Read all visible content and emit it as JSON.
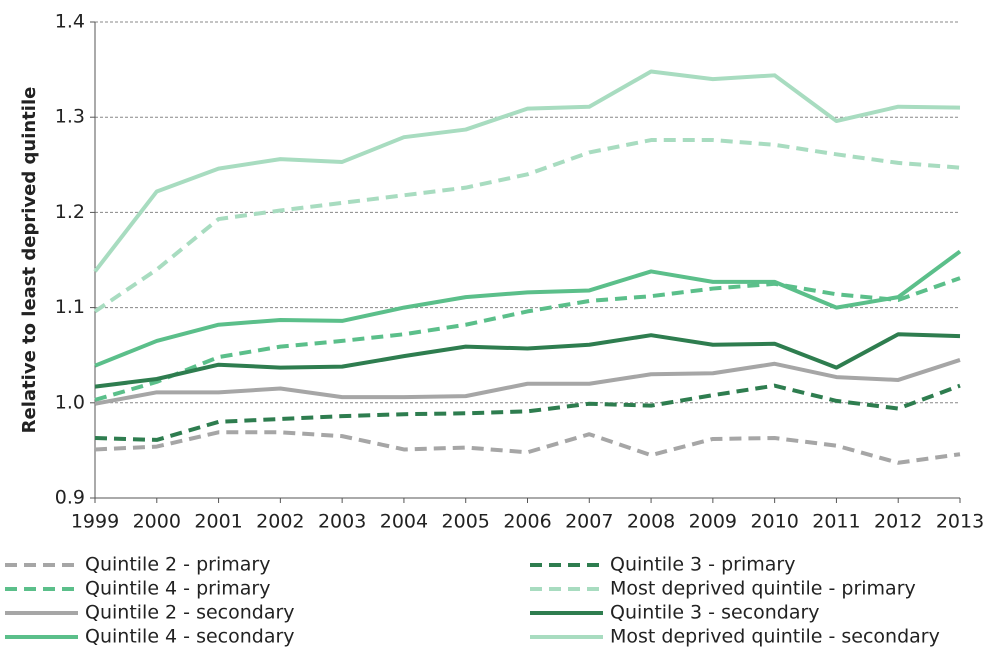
{
  "chart_data": {
    "type": "line",
    "y_label": "Relative to least deprived quintile",
    "categories": [
      "1999",
      "2000",
      "2001",
      "2002",
      "2003",
      "2004",
      "2005",
      "2006",
      "2007",
      "2008",
      "2009",
      "2010",
      "2011",
      "2012",
      "2013"
    ],
    "ylim": [
      0.9,
      1.4
    ],
    "yticks": [
      0.9,
      {
        "value": 1,
        "label": "1.0"
      },
      1.1,
      1.2,
      1.3,
      1.4
    ],
    "grid": true,
    "legend": "bottom",
    "series": [
      {
        "name": "Quintile 2 - primary",
        "color": "#a6a6a6",
        "dashed": true,
        "values": [
          0.951,
          0.954,
          0.969,
          0.969,
          0.965,
          0.951,
          0.953,
          0.948,
          0.967,
          0.945,
          0.962,
          0.963,
          0.955,
          0.937,
          0.946
        ]
      },
      {
        "name": "Quintile 3 - primary",
        "color": "#2e7d4f",
        "dashed": true,
        "values": [
          0.963,
          0.961,
          0.98,
          0.983,
          0.986,
          0.988,
          0.989,
          0.991,
          0.999,
          0.997,
          1.008,
          1.018,
          1.002,
          0.994,
          1.018
        ]
      },
      {
        "name": "Quintile 4 - primary",
        "color": "#5bbf8a",
        "dashed": true,
        "values": [
          1.003,
          1.022,
          1.048,
          1.059,
          1.065,
          1.072,
          1.082,
          1.096,
          1.107,
          1.112,
          1.12,
          1.125,
          1.114,
          1.108,
          1.131
        ]
      },
      {
        "name": "Most deprived quintile - primary",
        "color": "#a8dcc0",
        "dashed": true,
        "values": [
          1.096,
          1.14,
          1.193,
          1.202,
          1.21,
          1.218,
          1.226,
          1.24,
          1.263,
          1.276,
          1.276,
          1.271,
          1.261,
          1.252,
          1.247
        ]
      },
      {
        "name": "Quintile 2 - secondary",
        "color": "#a6a6a6",
        "dashed": false,
        "values": [
          0.999,
          1.011,
          1.011,
          1.015,
          1.006,
          1.006,
          1.007,
          1.02,
          1.02,
          1.03,
          1.031,
          1.041,
          1.027,
          1.024,
          1.045
        ]
      },
      {
        "name": "Quintile 3 - secondary",
        "color": "#2e7d4f",
        "dashed": false,
        "values": [
          1.017,
          1.025,
          1.04,
          1.037,
          1.038,
          1.049,
          1.059,
          1.057,
          1.061,
          1.071,
          1.061,
          1.062,
          1.037,
          1.072,
          1.07
        ]
      },
      {
        "name": "Quintile 4 - secondary",
        "color": "#5bbf8a",
        "dashed": false,
        "values": [
          1.039,
          1.065,
          1.082,
          1.087,
          1.086,
          1.1,
          1.111,
          1.116,
          1.118,
          1.138,
          1.127,
          1.127,
          1.1,
          1.111,
          1.159
        ]
      },
      {
        "name": "Most deprived quintile - secondary",
        "color": "#a8dcc0",
        "dashed": false,
        "values": [
          1.138,
          1.222,
          1.246,
          1.256,
          1.253,
          1.279,
          1.287,
          1.309,
          1.311,
          1.348,
          1.34,
          1.344,
          1.296,
          1.311,
          1.31
        ]
      }
    ]
  }
}
